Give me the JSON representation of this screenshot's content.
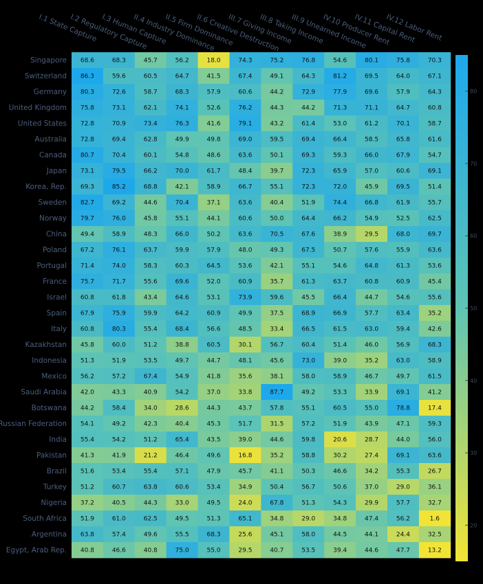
{
  "chart_data": {
    "type": "heatmap",
    "title": "",
    "xlabel": "",
    "ylabel": "",
    "columns": [
      "I.1 State Capture",
      "I.2 Regulatory Capture",
      "I.3 Human Capture",
      "II.4 Industry Dominance",
      "II.5 Firm Dominance",
      "II.6 Creative Destruction",
      "III.7 Giving Income",
      "III.8 Taking Income",
      "III.9 Unearned Income",
      "IV.10 Producer Rent",
      "IV.11 Capital Rent",
      "IV.12 Labor Rent"
    ],
    "rows": [
      "Singapore",
      "Switzerland",
      "Germany",
      "United Kingdom",
      "United States",
      "Australia",
      "Canada",
      "Japan",
      "Korea, Rep.",
      "Sweden",
      "Norway",
      "China",
      "Poland",
      "Portugal",
      "France",
      "Israel",
      "Spain",
      "Italy",
      "Kazakhstan",
      "Indonesia",
      "Mexico",
      "Saudi Arabia",
      "Botswana",
      "Russian Federation",
      "India",
      "Pakistan",
      "Brazil",
      "Turkey",
      "Nigeria",
      "South Africa",
      "Argentina",
      "Egypt, Arab Rep."
    ],
    "values": [
      [
        68.6,
        68.3,
        45.7,
        56.2,
        18.0,
        74.3,
        75.2,
        76.8,
        54.6,
        80.1,
        75.8,
        70.3
      ],
      [
        86.3,
        59.6,
        60.5,
        64.7,
        41.5,
        67.4,
        49.1,
        64.3,
        81.2,
        69.5,
        64.0,
        67.1
      ],
      [
        80.3,
        72.6,
        58.7,
        68.3,
        57.9,
        60.6,
        44.2,
        72.9,
        77.9,
        69.6,
        57.9,
        64.3
      ],
      [
        75.8,
        73.1,
        62.1,
        74.1,
        52.6,
        76.2,
        44.3,
        44.2,
        71.3,
        71.1,
        64.7,
        60.8
      ],
      [
        72.8,
        70.9,
        73.4,
        76.3,
        41.6,
        79.1,
        43.2,
        61.4,
        53.0,
        61.2,
        70.1,
        58.7
      ],
      [
        72.8,
        69.4,
        62.8,
        49.9,
        49.8,
        69.0,
        59.5,
        69.4,
        66.4,
        58.5,
        65.8,
        61.6
      ],
      [
        80.7,
        70.4,
        60.1,
        54.8,
        48.6,
        63.6,
        50.1,
        69.3,
        59.3,
        66.0,
        67.9,
        54.7
      ],
      [
        73.1,
        79.5,
        66.2,
        70.0,
        61.7,
        48.4,
        39.7,
        72.3,
        65.9,
        57.0,
        60.6,
        69.1
      ],
      [
        69.3,
        85.2,
        68.8,
        42.1,
        58.9,
        66.7,
        55.1,
        72.3,
        72.0,
        45.9,
        69.5,
        51.4
      ],
      [
        82.7,
        69.2,
        44.6,
        70.4,
        37.1,
        63.6,
        40.4,
        51.9,
        74.4,
        66.8,
        61.9,
        55.7
      ],
      [
        79.7,
        76.0,
        45.8,
        55.1,
        44.1,
        60.6,
        50.0,
        64.4,
        66.2,
        54.9,
        52.5,
        62.5
      ],
      [
        49.4,
        58.9,
        48.3,
        66.0,
        50.2,
        63.6,
        70.5,
        67.6,
        38.9,
        29.5,
        68.0,
        69.7
      ],
      [
        67.2,
        76.1,
        63.7,
        59.9,
        57.9,
        48.0,
        49.3,
        67.5,
        50.7,
        57.6,
        55.9,
        63.6
      ],
      [
        71.4,
        74.0,
        58.3,
        60.3,
        64.5,
        53.6,
        42.1,
        55.1,
        54.6,
        64.8,
        61.3,
        53.6
      ],
      [
        75.7,
        71.7,
        55.6,
        69.6,
        52.0,
        60.9,
        35.7,
        61.3,
        63.7,
        60.8,
        60.9,
        45.4
      ],
      [
        60.8,
        61.8,
        43.4,
        64.6,
        53.1,
        73.9,
        59.6,
        45.5,
        66.4,
        44.7,
        54.6,
        55.6
      ],
      [
        67.9,
        75.9,
        59.9,
        64.2,
        60.9,
        49.9,
        37.5,
        68.9,
        66.9,
        57.7,
        63.4,
        35.2
      ],
      [
        60.8,
        80.3,
        55.4,
        68.4,
        56.6,
        48.5,
        33.4,
        66.5,
        61.5,
        63.0,
        59.4,
        42.6
      ],
      [
        45.8,
        60.0,
        51.2,
        38.8,
        60.5,
        30.1,
        56.7,
        60.4,
        51.4,
        46.0,
        56.9,
        68.3
      ],
      [
        51.3,
        51.9,
        53.5,
        49.7,
        44.7,
        48.1,
        45.6,
        73.0,
        39.0,
        35.2,
        63.0,
        58.9
      ],
      [
        56.2,
        57.2,
        67.4,
        54.9,
        41.8,
        35.6,
        38.1,
        58.0,
        58.9,
        46.7,
        49.7,
        61.5
      ],
      [
        42.0,
        43.3,
        40.9,
        54.2,
        37.0,
        33.8,
        87.7,
        49.2,
        53.3,
        33.9,
        69.1,
        41.2
      ],
      [
        44.2,
        58.4,
        34.0,
        28.6,
        44.3,
        43.7,
        57.8,
        55.1,
        60.5,
        55.0,
        78.8,
        17.4
      ],
      [
        54.1,
        49.2,
        42.3,
        40.4,
        45.3,
        51.7,
        31.5,
        57.2,
        51.9,
        43.9,
        47.1,
        59.3
      ],
      [
        55.4,
        54.2,
        51.2,
        65.4,
        43.5,
        39.0,
        44.6,
        59.8,
        20.6,
        28.7,
        44.0,
        56.0
      ],
      [
        41.3,
        41.9,
        21.2,
        46.4,
        49.6,
        16.8,
        35.2,
        58.8,
        30.2,
        27.4,
        69.1,
        63.6
      ],
      [
        51.6,
        53.4,
        55.4,
        57.1,
        47.9,
        45.7,
        41.1,
        50.3,
        46.6,
        34.2,
        55.3,
        26.7
      ],
      [
        51.2,
        60.7,
        63.8,
        60.6,
        53.4,
        34.9,
        50.4,
        56.7,
        50.6,
        37.0,
        29.0,
        36.1
      ],
      [
        37.2,
        40.5,
        44.3,
        33.0,
        49.5,
        24.0,
        67.8,
        51.3,
        54.3,
        29.9,
        57.7,
        32.7
      ],
      [
        51.9,
        61.0,
        62.5,
        49.5,
        51.3,
        65.1,
        34.8,
        29.0,
        34.8,
        47.4,
        56.2,
        1.6
      ],
      [
        63.8,
        57.4,
        49.6,
        55.5,
        68.3,
        25.6,
        45.1,
        58.0,
        44.5,
        44.1,
        24.4,
        32.5
      ],
      [
        40.8,
        46.6,
        40.8,
        75.0,
        55.0,
        29.5,
        40.7,
        53.5,
        39.4,
        44.6,
        47.7,
        13.2
      ]
    ],
    "colorbar": {
      "ticks": [
        20,
        30,
        40,
        50,
        60,
        70,
        80
      ],
      "low_color": "#f2e435",
      "mid_color": "#5ec4b4",
      "high_color": "#1ea8ec"
    },
    "legend": "colorbar-right"
  }
}
